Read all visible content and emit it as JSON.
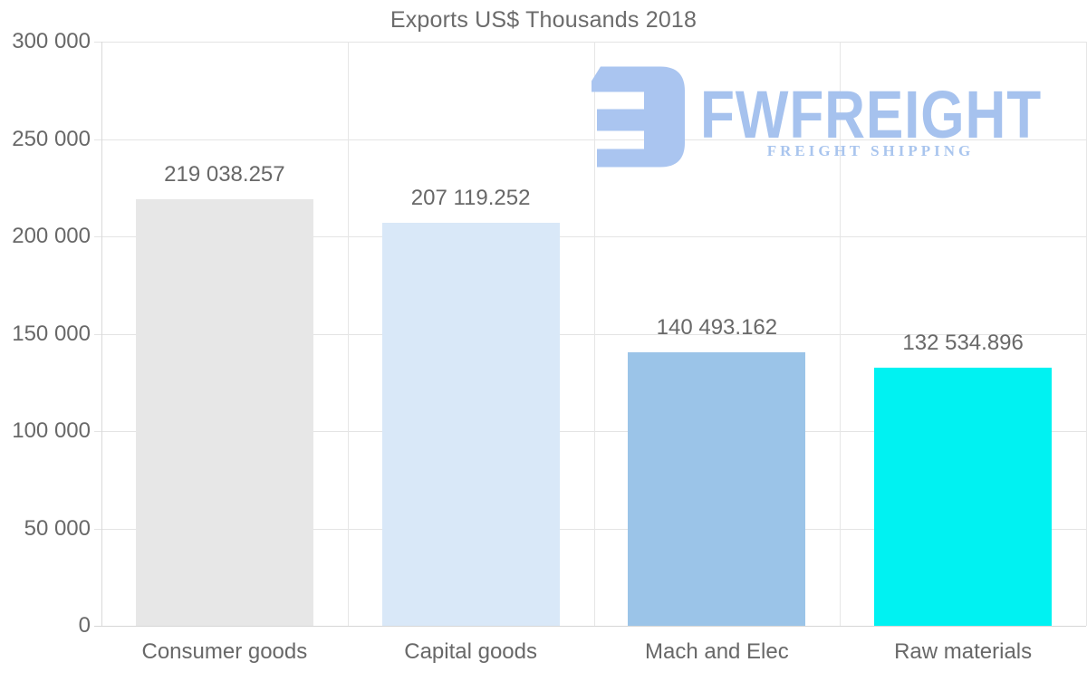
{
  "chart_data": {
    "type": "bar",
    "title": "Exports US$ Thousands 2018",
    "categories": [
      "Consumer goods",
      "Capital goods",
      "Mach and Elec",
      "Raw materials"
    ],
    "values": [
      219038.257,
      207119.252,
      140493.162,
      132534.896
    ],
    "value_labels": [
      "219 038.257",
      "207 119.252",
      "140 493.162",
      "132 534.896"
    ],
    "bar_colors": [
      "#e7e7e7",
      "#d9e8f8",
      "#9bc4e8",
      "#00f2f2"
    ],
    "xlabel": "",
    "ylabel": "",
    "ylim": [
      0,
      300000
    ],
    "y_ticks": [
      0,
      50000,
      100000,
      150000,
      200000,
      250000,
      300000
    ],
    "y_tick_labels": [
      "0",
      "50 000",
      "100 000",
      "150 000",
      "200 000",
      "250 000",
      "300 000"
    ],
    "grid": true,
    "legend": false
  },
  "watermark": {
    "brand": "FWFREIGHT",
    "tagline": "FREIGHT SHIPPING",
    "color": "#a6c2ee"
  }
}
